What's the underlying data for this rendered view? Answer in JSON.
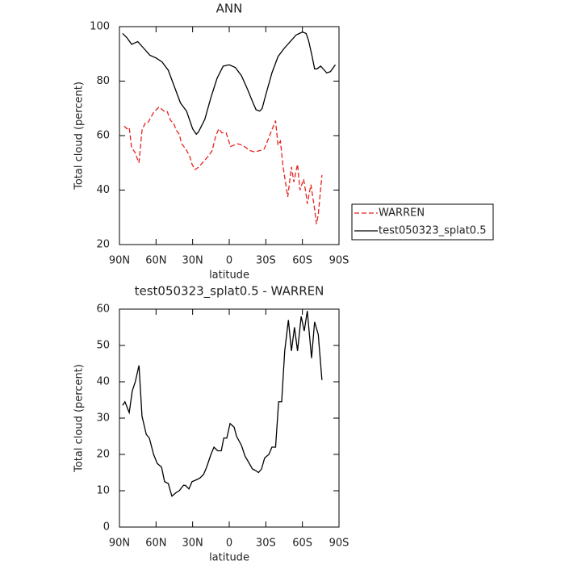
{
  "chart_data": [
    {
      "type": "line",
      "title": "ANN",
      "xlabel": "latitude",
      "ylabel": "Total cloud (percent)",
      "xlim": [
        90,
        -90
      ],
      "ylim": [
        20,
        100
      ],
      "xticks": [
        {
          "value": 90,
          "label": "90N"
        },
        {
          "value": 60,
          "label": "60N"
        },
        {
          "value": 30,
          "label": "30N"
        },
        0,
        {
          "value": -30,
          "label": "30S"
        },
        {
          "value": -60,
          "label": "60S"
        },
        {
          "value": -90,
          "label": "90S"
        }
      ],
      "yticks": [
        20,
        40,
        60,
        80,
        100
      ],
      "legend": "outside-right",
      "series": [
        {
          "name": "WARREN",
          "color": "#e8221f",
          "dash": true,
          "x": [
            86,
            84,
            82,
            80,
            77.5,
            74,
            71.5,
            69,
            67,
            62,
            57.5,
            53.5,
            51,
            48,
            45.5,
            43.5,
            41,
            39,
            35.5,
            32.5,
            30.5,
            28,
            25,
            21,
            17,
            14,
            11,
            8.5,
            6,
            2.5,
            0,
            -1,
            -4,
            -7,
            -10.5,
            -14,
            -17,
            -21,
            -25,
            -28.5,
            -30.5,
            -34,
            -38,
            -40,
            -42,
            -44,
            -48,
            -51,
            -53,
            -56,
            -58,
            -61,
            -63,
            -64,
            -67,
            -70,
            -71.5,
            -73,
            -76
          ],
          "values": [
            63.5,
            62.5,
            63,
            55.5,
            54,
            50,
            62,
            64.5,
            64.5,
            68.5,
            70.5,
            69,
            69,
            65.5,
            64.5,
            62,
            60.5,
            57,
            55,
            52.5,
            49.5,
            47.5,
            48.5,
            50.5,
            52.5,
            54.5,
            60,
            62.5,
            61,
            61,
            57.5,
            56,
            56.5,
            57,
            56.5,
            55.5,
            54.5,
            54,
            54.5,
            55,
            57,
            61,
            65.5,
            56.5,
            58,
            49,
            37.5,
            48.5,
            43,
            49.5,
            40,
            44,
            38.5,
            35,
            42,
            33,
            27.5,
            31,
            45.5
          ]
        },
        {
          "name": "test050323_splat0.5",
          "color": "#000000",
          "dash": false,
          "x": [
            87.5,
            84,
            80,
            75,
            70,
            65,
            60,
            55,
            50,
            45,
            40,
            35,
            30,
            27,
            25,
            20,
            15,
            10,
            5,
            0,
            -5,
            -10,
            -15,
            -20,
            -22,
            -25,
            -27,
            -30,
            -35,
            -40,
            -45,
            -50,
            -55,
            -60,
            -63,
            -65,
            -68,
            -70,
            -72,
            -75,
            -78,
            -80,
            -83,
            -87
          ],
          "values": [
            97.5,
            96,
            93.5,
            94.5,
            92,
            89.5,
            88.5,
            87,
            84,
            78,
            72,
            69,
            62.5,
            60.5,
            61.5,
            66,
            74,
            81,
            85.5,
            86,
            85,
            82,
            77,
            71.5,
            69.5,
            69,
            70,
            75,
            83,
            89,
            92,
            94.5,
            97,
            98,
            97.5,
            95,
            89,
            84.5,
            84.5,
            85.5,
            84,
            83,
            83.5,
            86
          ]
        }
      ]
    },
    {
      "type": "line",
      "title": "test050323_splat0.5 - WARREN",
      "xlabel": "latitude",
      "ylabel": "Total cloud (percent)",
      "xlim": [
        90,
        -90
      ],
      "ylim": [
        0,
        60
      ],
      "xticks": [
        {
          "value": 90,
          "label": "90N"
        },
        {
          "value": 60,
          "label": "60N"
        },
        {
          "value": 30,
          "label": "30N"
        },
        0,
        {
          "value": -30,
          "label": "30S"
        },
        {
          "value": -60,
          "label": "60S"
        },
        {
          "value": -90,
          "label": "90S"
        }
      ],
      "yticks": [
        0,
        10,
        20,
        30,
        40,
        50,
        60
      ],
      "series": [
        {
          "color": "#000000",
          "dash": false,
          "x": [
            87.5,
            85.5,
            82,
            79.5,
            77,
            74,
            71.5,
            68,
            65.5,
            62,
            59,
            55.5,
            53,
            50,
            47,
            43.5,
            41,
            37.5,
            36,
            33,
            30.5,
            27,
            24,
            21,
            18.5,
            15,
            12.5,
            9.5,
            6.5,
            4.5,
            2,
            -0.7,
            -4,
            -6,
            -10,
            -13,
            -16.5,
            -19,
            -22,
            -24,
            -26.5,
            -29,
            -32.5,
            -35,
            -38,
            -40.5,
            -43,
            -45.5,
            -48.5,
            -51,
            -53.5,
            -56,
            -59,
            -61.5,
            -64,
            -67.5,
            -70,
            -73,
            -76
          ],
          "values": [
            33.5,
            34.5,
            31.5,
            37.5,
            40,
            44.5,
            30.5,
            25.5,
            24.5,
            20,
            17.5,
            16.5,
            12.5,
            12,
            8.5,
            9.5,
            10,
            11.5,
            11.5,
            10.5,
            12.5,
            13,
            13.5,
            14.5,
            16.5,
            20,
            22,
            21,
            21,
            24.5,
            24.5,
            28.5,
            27.5,
            25,
            22.5,
            19.5,
            17.5,
            16,
            15.5,
            15,
            16,
            19,
            20,
            22,
            22,
            34.5,
            34.5,
            48.5,
            57,
            48.5,
            55,
            48.5,
            58,
            54,
            59.5,
            46.5,
            56.5,
            53,
            40.5
          ]
        }
      ]
    }
  ]
}
